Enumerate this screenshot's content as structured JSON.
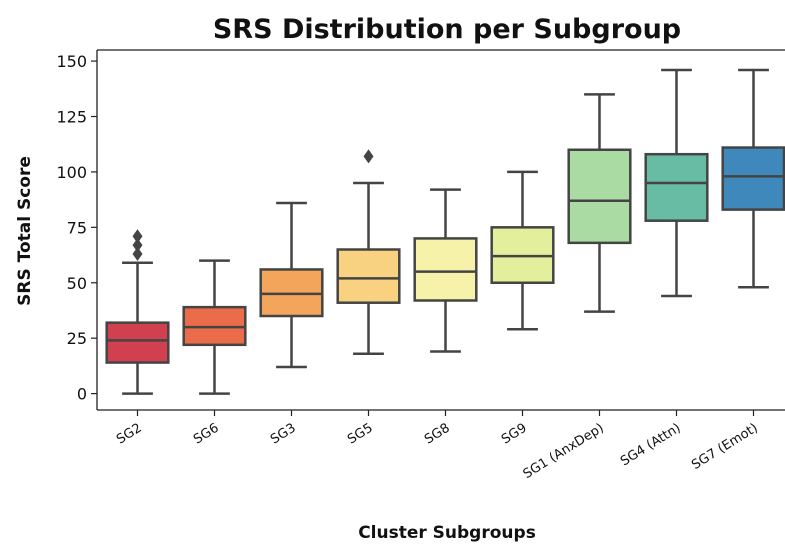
{
  "chart_data": {
    "type": "box",
    "title": "SRS Distribution per Subgroup",
    "xlabel": "Cluster Subgroups",
    "ylabel": "SRS Total Score",
    "categories": [
      "SG2",
      "SG6",
      "SG3",
      "SG5",
      "SG8",
      "SG9",
      "SG1 (AnxDep)",
      "SG4 (Attn)",
      "SG7 (Emot)"
    ],
    "colors": [
      "#d0404f",
      "#ea6c4a",
      "#f3a55c",
      "#f8d280",
      "#f6f2aa",
      "#e3ef9c",
      "#a9dba3",
      "#69bca4",
      "#3f88bb"
    ],
    "boxes": [
      {
        "low": 0,
        "q1": 14,
        "median": 24,
        "q3": 32,
        "high": 59,
        "outliers": [
          63,
          67,
          71
        ]
      },
      {
        "low": 0,
        "q1": 22,
        "median": 30,
        "q3": 39,
        "high": 60,
        "outliers": []
      },
      {
        "low": 12,
        "q1": 35,
        "median": 45,
        "q3": 56,
        "high": 86,
        "outliers": []
      },
      {
        "low": 18,
        "q1": 41,
        "median": 52,
        "q3": 65,
        "high": 95,
        "outliers": [
          107
        ]
      },
      {
        "low": 19,
        "q1": 42,
        "median": 55,
        "q3": 70,
        "high": 92,
        "outliers": []
      },
      {
        "low": 29,
        "q1": 50,
        "median": 62,
        "q3": 75,
        "high": 100,
        "outliers": []
      },
      {
        "low": 37,
        "q1": 68,
        "median": 87,
        "q3": 110,
        "high": 135,
        "outliers": []
      },
      {
        "low": 44,
        "q1": 78,
        "median": 95,
        "q3": 108,
        "high": 146,
        "outliers": []
      },
      {
        "low": 48,
        "q1": 83,
        "median": 98,
        "q3": 111,
        "high": 146,
        "outliers": []
      }
    ],
    "ylim": [
      -7.4,
      155
    ],
    "yticks": [
      0,
      25,
      50,
      75,
      100,
      125,
      150
    ]
  }
}
